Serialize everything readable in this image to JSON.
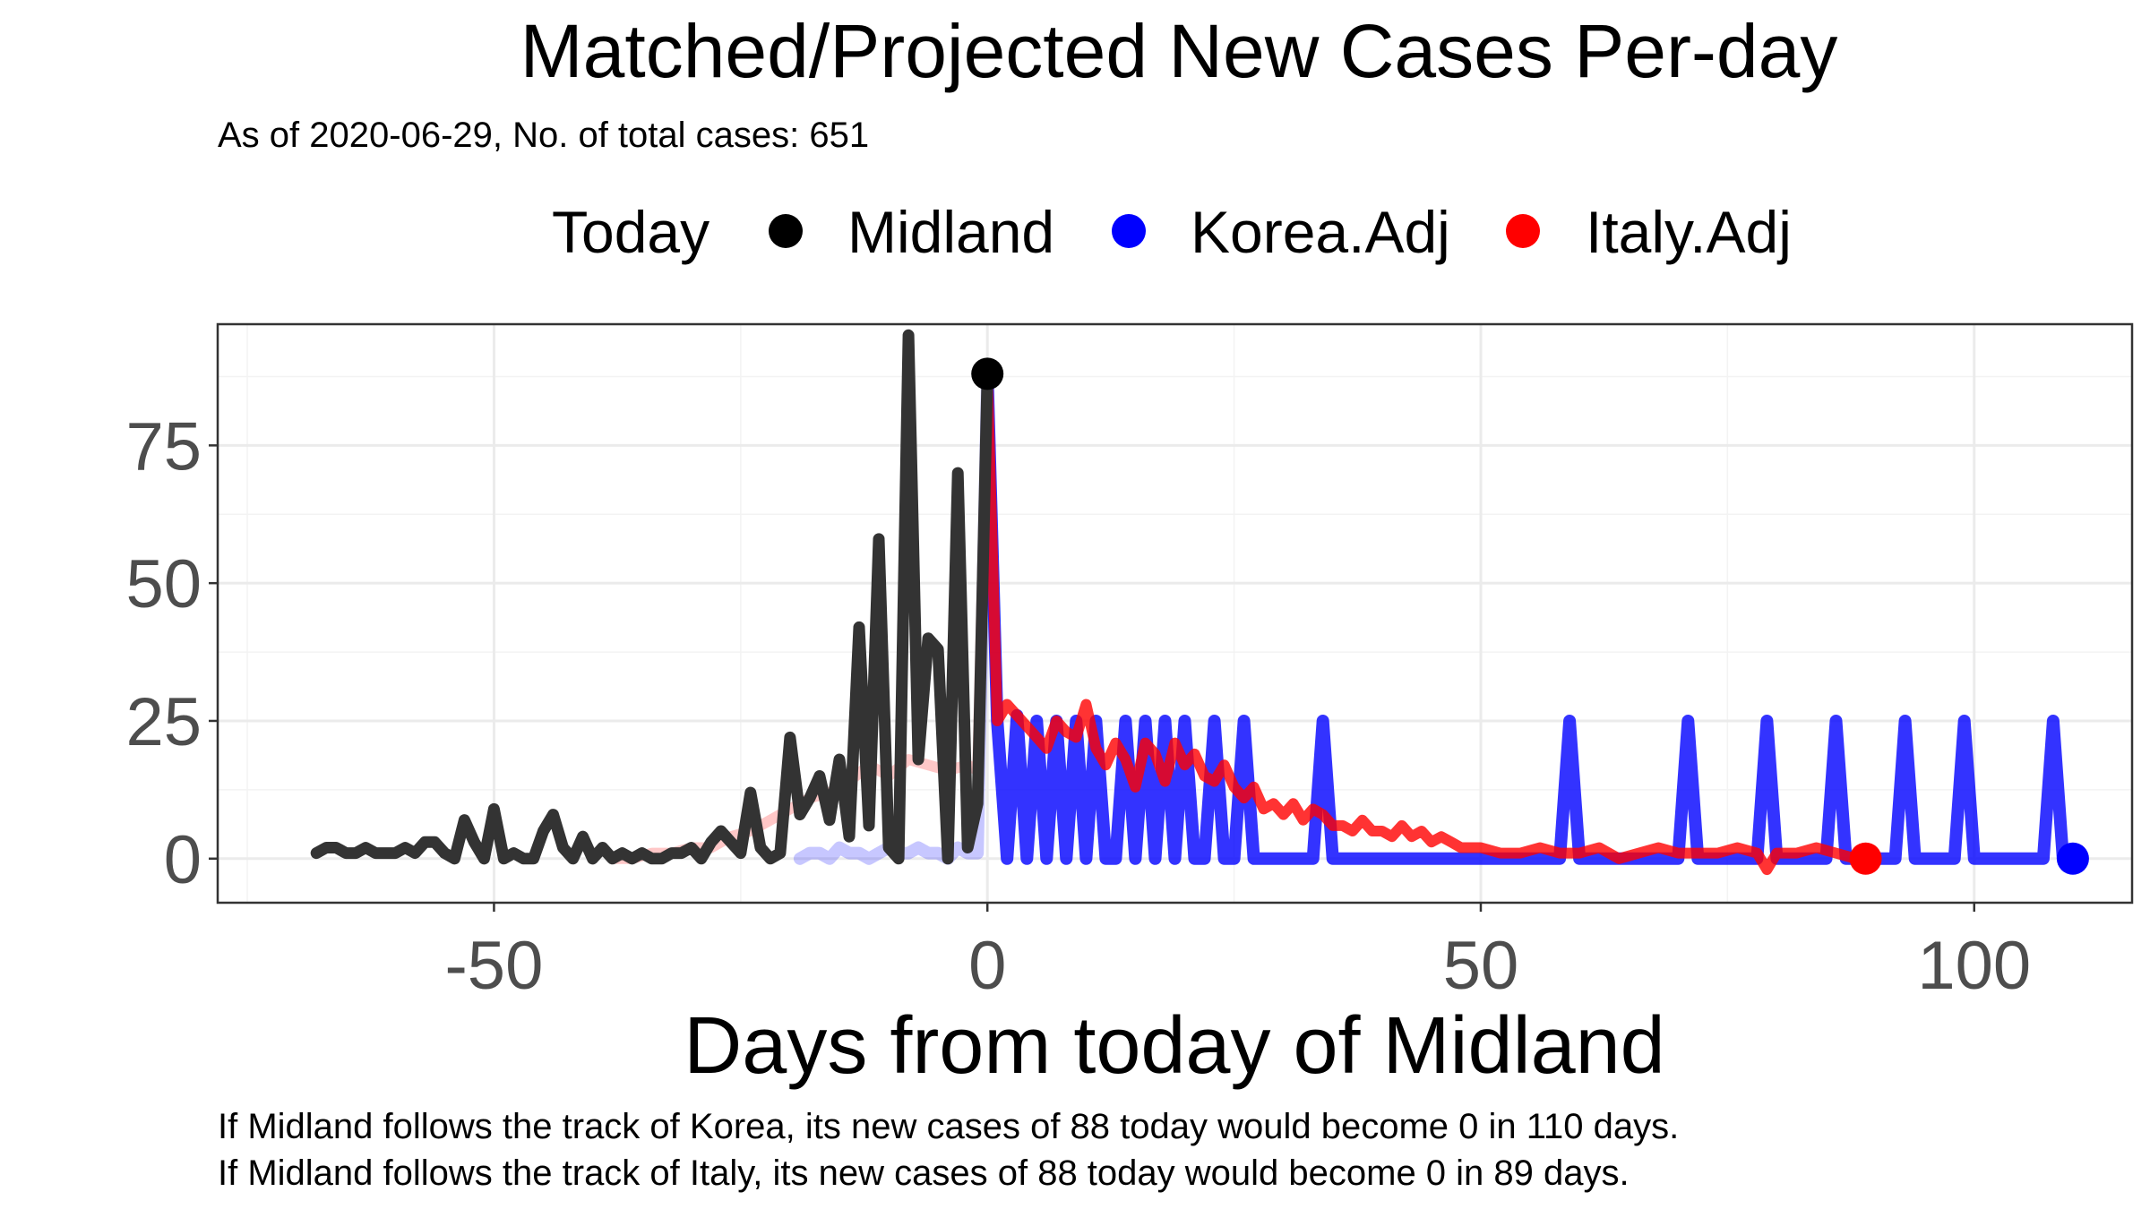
{
  "chart_data": {
    "type": "line",
    "title": "Matched/Projected New Cases Per-day",
    "subtitle": "As of 2020-06-29, No. of total cases: 651",
    "xlabel": "Days from today of Midland",
    "ylabel": "",
    "xlim": [
      -78,
      116
    ],
    "ylim": [
      -8,
      97
    ],
    "x_ticks": [
      -50,
      0,
      50,
      100
    ],
    "y_ticks": [
      0,
      25,
      50,
      75
    ],
    "x_tick_labels": [
      "-50",
      "0",
      "50",
      "100"
    ],
    "y_tick_labels": [
      "0",
      "25",
      "50",
      "75"
    ],
    "grid": true,
    "legend_position": "top",
    "legend": {
      "title": "Today",
      "entries": [
        "Midland",
        "Korea.Adj",
        "Italy.Adj"
      ]
    },
    "today_markers": [
      {
        "series": "Midland",
        "x": 0,
        "y": 88,
        "color": "#000000"
      },
      {
        "series": "Korea.Adj",
        "x": 110,
        "y": 0,
        "color": "#0000ff"
      },
      {
        "series": "Italy.Adj",
        "x": 89,
        "y": 0,
        "color": "#ff0000"
      }
    ],
    "series": [
      {
        "name": "Midland",
        "color": "#333333",
        "points": [
          [
            -68,
            1
          ],
          [
            -67,
            2
          ],
          [
            -66,
            2
          ],
          [
            -65,
            1
          ],
          [
            -64,
            1
          ],
          [
            -63,
            2
          ],
          [
            -62,
            1
          ],
          [
            -61,
            1
          ],
          [
            -60,
            1
          ],
          [
            -59,
            2
          ],
          [
            -58,
            1
          ],
          [
            -57,
            3
          ],
          [
            -56,
            3
          ],
          [
            -55,
            1
          ],
          [
            -54,
            0
          ],
          [
            -53,
            7
          ],
          [
            -52,
            3
          ],
          [
            -51,
            0
          ],
          [
            -50,
            9
          ],
          [
            -49,
            0
          ],
          [
            -48,
            1
          ],
          [
            -47,
            0
          ],
          [
            -46,
            0
          ],
          [
            -45,
            5
          ],
          [
            -44,
            8
          ],
          [
            -43,
            2
          ],
          [
            -42,
            0
          ],
          [
            -41,
            4
          ],
          [
            -40,
            0
          ],
          [
            -39,
            2
          ],
          [
            -38,
            0
          ],
          [
            -37,
            1
          ],
          [
            -36,
            0
          ],
          [
            -35,
            1
          ],
          [
            -34,
            0
          ],
          [
            -33,
            0
          ],
          [
            -32,
            1
          ],
          [
            -31,
            1
          ],
          [
            -30,
            2
          ],
          [
            -29,
            0
          ],
          [
            -28,
            3
          ],
          [
            -27,
            5
          ],
          [
            -26,
            3
          ],
          [
            -25,
            1
          ],
          [
            -24,
            12
          ],
          [
            -23,
            2
          ],
          [
            -22,
            0
          ],
          [
            -21,
            1
          ],
          [
            -20,
            22
          ],
          [
            -19,
            8
          ],
          [
            -18,
            11
          ],
          [
            -17,
            15
          ],
          [
            -16,
            7
          ],
          [
            -15,
            18
          ],
          [
            -14,
            4
          ],
          [
            -13,
            42
          ],
          [
            -12,
            6
          ],
          [
            -11,
            58
          ],
          [
            -10,
            2
          ],
          [
            -9,
            0
          ],
          [
            -8,
            95
          ],
          [
            -7,
            18
          ],
          [
            -6,
            40
          ],
          [
            -5,
            38
          ],
          [
            -4,
            0
          ],
          [
            -3,
            70
          ],
          [
            -2,
            2
          ],
          [
            -1,
            10
          ],
          [
            0,
            88
          ]
        ]
      },
      {
        "name": "Korea.Adj",
        "color": "#0000ff",
        "points": [
          [
            -19,
            0
          ],
          [
            -18,
            1
          ],
          [
            -17,
            1
          ],
          [
            -16,
            0
          ],
          [
            -15,
            2
          ],
          [
            -14,
            1
          ],
          [
            -13,
            1
          ],
          [
            -12,
            0
          ],
          [
            -11,
            1
          ],
          [
            -10,
            2
          ],
          [
            -9,
            1
          ],
          [
            -8,
            1
          ],
          [
            -7,
            2
          ],
          [
            -6,
            1
          ],
          [
            -5,
            1
          ],
          [
            -4,
            0
          ],
          [
            -3,
            2
          ],
          [
            -2,
            1
          ],
          [
            -1,
            1
          ],
          [
            0,
            88
          ],
          [
            1,
            25
          ],
          [
            2,
            0
          ],
          [
            3,
            26
          ],
          [
            4,
            0
          ],
          [
            5,
            25
          ],
          [
            6,
            0
          ],
          [
            7,
            25
          ],
          [
            8,
            0
          ],
          [
            9,
            25
          ],
          [
            10,
            0
          ],
          [
            11,
            25
          ],
          [
            12,
            0
          ],
          [
            13,
            0
          ],
          [
            14,
            25
          ],
          [
            15,
            0
          ],
          [
            16,
            25
          ],
          [
            17,
            0
          ],
          [
            18,
            25
          ],
          [
            19,
            0
          ],
          [
            20,
            25
          ],
          [
            21,
            0
          ],
          [
            22,
            0
          ],
          [
            23,
            25
          ],
          [
            24,
            0
          ],
          [
            25,
            0
          ],
          [
            26,
            25
          ],
          [
            27,
            0
          ],
          [
            28,
            0
          ],
          [
            29,
            0
          ],
          [
            30,
            0
          ],
          [
            31,
            0
          ],
          [
            32,
            0
          ],
          [
            33,
            0
          ],
          [
            34,
            25
          ],
          [
            35,
            0
          ],
          [
            36,
            0
          ],
          [
            37,
            0
          ],
          [
            38,
            0
          ],
          [
            39,
            0
          ],
          [
            40,
            0
          ],
          [
            45,
            0
          ],
          [
            50,
            0
          ],
          [
            55,
            0
          ],
          [
            58,
            0
          ],
          [
            59,
            25
          ],
          [
            60,
            0
          ],
          [
            65,
            0
          ],
          [
            70,
            0
          ],
          [
            71,
            25
          ],
          [
            72,
            0
          ],
          [
            75,
            0
          ],
          [
            78,
            0
          ],
          [
            79,
            25
          ],
          [
            80,
            0
          ],
          [
            85,
            0
          ],
          [
            86,
            25
          ],
          [
            87,
            0
          ],
          [
            90,
            0
          ],
          [
            92,
            0
          ],
          [
            93,
            25
          ],
          [
            94,
            0
          ],
          [
            98,
            0
          ],
          [
            99,
            25
          ],
          [
            100,
            0
          ],
          [
            105,
            0
          ],
          [
            107,
            0
          ],
          [
            108,
            25
          ],
          [
            109,
            0
          ],
          [
            110,
            0
          ]
        ]
      },
      {
        "name": "Italy.Adj",
        "color": "#ff0000",
        "points": [
          [
            -38,
            0
          ],
          [
            -36,
            0
          ],
          [
            -34,
            1
          ],
          [
            -32,
            1
          ],
          [
            -30,
            2
          ],
          [
            -28,
            2
          ],
          [
            -26,
            4
          ],
          [
            -24,
            5
          ],
          [
            -22,
            7
          ],
          [
            -20,
            9
          ],
          [
            -18,
            11
          ],
          [
            -16,
            12
          ],
          [
            -14,
            14
          ],
          [
            -12,
            17
          ],
          [
            -10,
            15
          ],
          [
            -8,
            18
          ],
          [
            -6,
            17
          ],
          [
            -4,
            16
          ],
          [
            -2,
            17
          ],
          [
            -1,
            16
          ],
          [
            0,
            88
          ],
          [
            1,
            25
          ],
          [
            2,
            28
          ],
          [
            3,
            26
          ],
          [
            4,
            24
          ],
          [
            5,
            22
          ],
          [
            6,
            20
          ],
          [
            7,
            25
          ],
          [
            8,
            23
          ],
          [
            9,
            22
          ],
          [
            10,
            28
          ],
          [
            11,
            20
          ],
          [
            12,
            17
          ],
          [
            13,
            21
          ],
          [
            14,
            18
          ],
          [
            15,
            13
          ],
          [
            16,
            21
          ],
          [
            17,
            19
          ],
          [
            18,
            14
          ],
          [
            19,
            21
          ],
          [
            20,
            17
          ],
          [
            21,
            19
          ],
          [
            22,
            15
          ],
          [
            23,
            14
          ],
          [
            24,
            17
          ],
          [
            25,
            13
          ],
          [
            26,
            11
          ],
          [
            27,
            13
          ],
          [
            28,
            9
          ],
          [
            29,
            10
          ],
          [
            30,
            8
          ],
          [
            31,
            10
          ],
          [
            32,
            7
          ],
          [
            33,
            9
          ],
          [
            34,
            8
          ],
          [
            35,
            6
          ],
          [
            36,
            6
          ],
          [
            37,
            5
          ],
          [
            38,
            7
          ],
          [
            39,
            5
          ],
          [
            40,
            5
          ],
          [
            41,
            4
          ],
          [
            42,
            6
          ],
          [
            43,
            4
          ],
          [
            44,
            5
          ],
          [
            45,
            3
          ],
          [
            46,
            4
          ],
          [
            47,
            3
          ],
          [
            48,
            2
          ],
          [
            50,
            2
          ],
          [
            52,
            1
          ],
          [
            54,
            1
          ],
          [
            56,
            2
          ],
          [
            58,
            1
          ],
          [
            60,
            1
          ],
          [
            62,
            2
          ],
          [
            64,
            0
          ],
          [
            66,
            1
          ],
          [
            68,
            2
          ],
          [
            70,
            1
          ],
          [
            72,
            1
          ],
          [
            74,
            1
          ],
          [
            76,
            2
          ],
          [
            78,
            1
          ],
          [
            79,
            -2
          ],
          [
            80,
            1
          ],
          [
            82,
            1
          ],
          [
            84,
            2
          ],
          [
            86,
            1
          ],
          [
            88,
            0
          ],
          [
            89,
            0
          ]
        ]
      }
    ]
  },
  "caption": {
    "line1": "If Midland follows the track of Korea, its new cases of 88 today would become 0 in 110 days.",
    "line2": "If Midland follows the track of Italy, its new cases of 88 today would become 0 in 89 days."
  }
}
